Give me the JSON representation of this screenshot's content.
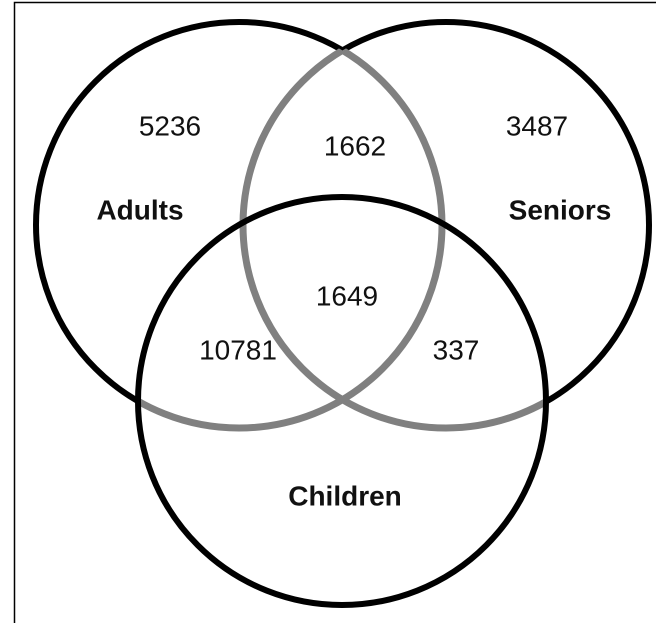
{
  "sets": [
    {
      "label": "Adults"
    },
    {
      "label": "Seniors"
    },
    {
      "label": "Children"
    }
  ],
  "regions": [
    {
      "count": 5236
    },
    {
      "count": 1662
    },
    {
      "count": 3487
    },
    {
      "count": 1649
    },
    {
      "count": 10781
    },
    {
      "count": 337
    }
  ]
}
